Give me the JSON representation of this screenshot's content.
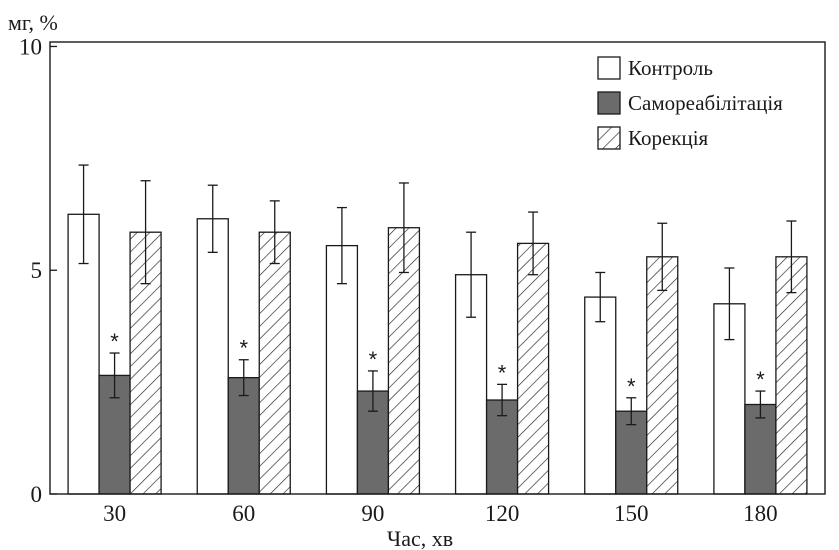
{
  "chart_data": {
    "type": "bar",
    "title": "",
    "ylabel": "мг, %",
    "xlabel": "Час, хв",
    "categories": [
      "30",
      "60",
      "90",
      "120",
      "150",
      "180"
    ],
    "ylim": [
      0,
      10.1
    ],
    "yticks": [
      0,
      5,
      10
    ],
    "grid": false,
    "legend_position": "top-right",
    "series": [
      {
        "name": "Контроль",
        "pattern": "solid",
        "color": "#ffffff",
        "values": [
          6.25,
          6.15,
          5.55,
          4.9,
          4.4,
          4.25
        ],
        "errors": [
          1.1,
          0.75,
          0.85,
          0.95,
          0.55,
          0.8
        ],
        "significant": [
          false,
          false,
          false,
          false,
          false,
          false
        ]
      },
      {
        "name": "Самореабілітація",
        "pattern": "solid",
        "color": "#6b6b6b",
        "values": [
          2.65,
          2.6,
          2.3,
          2.1,
          1.85,
          2.0
        ],
        "errors": [
          0.5,
          0.4,
          0.45,
          0.35,
          0.3,
          0.3
        ],
        "significant": [
          true,
          true,
          true,
          true,
          true,
          true
        ]
      },
      {
        "name": "Корекція",
        "pattern": "hatched",
        "color": "#ffffff",
        "values": [
          5.85,
          5.85,
          5.95,
          5.6,
          5.3,
          5.3
        ],
        "errors": [
          1.15,
          0.7,
          1.0,
          0.7,
          0.75,
          0.8
        ],
        "significant": [
          false,
          false,
          false,
          false,
          false,
          false
        ]
      }
    ],
    "annotation_symbol": "*"
  }
}
